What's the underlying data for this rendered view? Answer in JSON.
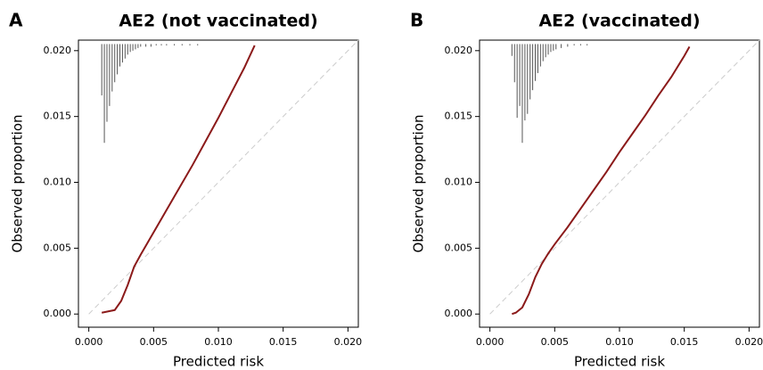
{
  "chart_data": [
    {
      "type": "line",
      "panel": "A",
      "title": "AE2 (not vaccinated)",
      "xlabel": "Predicted risk",
      "ylabel": "Observed proportion",
      "xlim": [
        -0.0008,
        0.0208
      ],
      "ylim": [
        -0.001,
        0.0208
      ],
      "xticks": [
        {
          "value": 0,
          "label": "0.000"
        },
        {
          "value": 0.005,
          "label": "0.005"
        },
        {
          "value": 0.01,
          "label": "0.010"
        },
        {
          "value": 0.015,
          "label": "0.015"
        },
        {
          "value": 0.02,
          "label": "0.020"
        }
      ],
      "yticks": [
        {
          "value": 0,
          "label": "0.000"
        },
        {
          "value": 0.005,
          "label": "0.005"
        },
        {
          "value": 0.01,
          "label": "0.010"
        },
        {
          "value": 0.015,
          "label": "0.015"
        },
        {
          "value": 0.02,
          "label": "0.020"
        }
      ],
      "curve": {
        "color": "#8b1a1a",
        "x": [
          0.001,
          0.0015,
          0.002,
          0.0025,
          0.003,
          0.0035,
          0.004,
          0.005,
          0.006,
          0.007,
          0.008,
          0.009,
          0.01,
          0.011,
          0.012,
          0.0128
        ],
        "values": [
          0.0001,
          0.0002,
          0.0003,
          0.001,
          0.0022,
          0.0036,
          0.0045,
          0.0062,
          0.0079,
          0.0096,
          0.0113,
          0.0131,
          0.0149,
          0.0168,
          0.0187,
          0.0204
        ]
      },
      "reference": {
        "color": "#cccccc",
        "x": [
          0,
          0.0208
        ],
        "values": [
          0,
          0.0208
        ]
      },
      "spike_top": 0.0205,
      "spike_color": "#555555",
      "spikes": {
        "x": [
          0.001,
          0.0012,
          0.0014,
          0.0016,
          0.0018,
          0.002,
          0.0022,
          0.0024,
          0.0026,
          0.0028,
          0.003,
          0.0032,
          0.0034,
          0.0036,
          0.0038,
          0.004,
          0.0044,
          0.0048,
          0.0052,
          0.0056,
          0.006,
          0.0066,
          0.0072,
          0.0078,
          0.0084
        ],
        "values": [
          0.0166,
          0.013,
          0.0146,
          0.0158,
          0.0169,
          0.0176,
          0.0182,
          0.0188,
          0.0191,
          0.0194,
          0.0197,
          0.0199,
          0.02,
          0.0201,
          0.0202,
          0.0203,
          0.0203,
          0.0203,
          0.0204,
          0.0204,
          0.0204,
          0.0204,
          0.0204,
          0.0204,
          0.0204
        ]
      }
    },
    {
      "type": "line",
      "panel": "B",
      "title": "AE2 (vaccinated)",
      "xlabel": "Predicted risk",
      "ylabel": "Observed proportion",
      "xlim": [
        -0.0008,
        0.0208
      ],
      "ylim": [
        -0.001,
        0.0208
      ],
      "xticks": [
        {
          "value": 0,
          "label": "0.000"
        },
        {
          "value": 0.005,
          "label": "0.005"
        },
        {
          "value": 0.01,
          "label": "0.010"
        },
        {
          "value": 0.015,
          "label": "0.015"
        },
        {
          "value": 0.02,
          "label": "0.020"
        }
      ],
      "yticks": [
        {
          "value": 0,
          "label": "0.000"
        },
        {
          "value": 0.005,
          "label": "0.005"
        },
        {
          "value": 0.01,
          "label": "0.010"
        },
        {
          "value": 0.015,
          "label": "0.015"
        },
        {
          "value": 0.02,
          "label": "0.020"
        }
      ],
      "curve": {
        "color": "#8b1a1a",
        "x": [
          0.0017,
          0.002,
          0.0025,
          0.003,
          0.0035,
          0.004,
          0.0045,
          0.005,
          0.006,
          0.007,
          0.008,
          0.009,
          0.01,
          0.011,
          0.012,
          0.013,
          0.014,
          0.015,
          0.0154
        ],
        "values": [
          0.0,
          0.0001,
          0.0005,
          0.0015,
          0.0028,
          0.0038,
          0.0046,
          0.0053,
          0.0066,
          0.008,
          0.0094,
          0.0108,
          0.0123,
          0.0137,
          0.0151,
          0.0166,
          0.018,
          0.0196,
          0.0203
        ]
      },
      "reference": {
        "color": "#cccccc",
        "x": [
          0,
          0.0208
        ],
        "values": [
          0,
          0.0208
        ]
      },
      "spike_top": 0.0205,
      "spike_color": "#555555",
      "spikes": {
        "x": [
          0.0017,
          0.0019,
          0.0021,
          0.0023,
          0.0025,
          0.0027,
          0.0029,
          0.0031,
          0.0033,
          0.0035,
          0.0037,
          0.0039,
          0.0041,
          0.0043,
          0.0045,
          0.0047,
          0.0049,
          0.0051,
          0.0055,
          0.006,
          0.0065,
          0.007,
          0.0075
        ],
        "values": [
          0.0196,
          0.0176,
          0.0149,
          0.0158,
          0.013,
          0.0147,
          0.0152,
          0.0163,
          0.017,
          0.0177,
          0.0183,
          0.0188,
          0.0192,
          0.0195,
          0.0197,
          0.0199,
          0.02,
          0.0201,
          0.0202,
          0.0203,
          0.0204,
          0.0204,
          0.0204
        ]
      }
    }
  ]
}
